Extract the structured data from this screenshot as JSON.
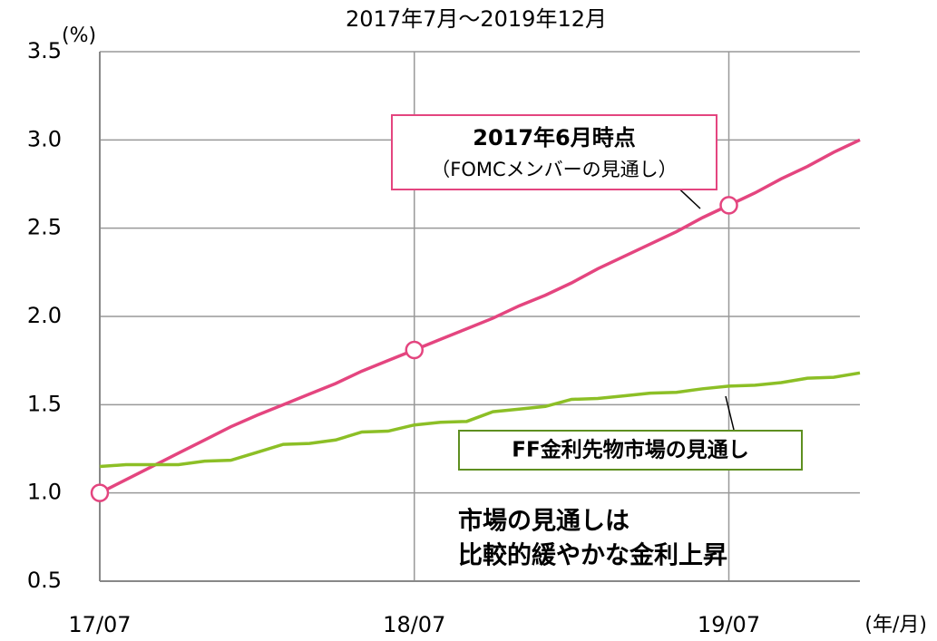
{
  "chart_data": {
    "type": "line",
    "title": "2017年7月～2019年12月",
    "y_label": "(%)",
    "x_label": "(年/月)",
    "categories": [
      "17/07",
      null,
      null,
      null,
      null,
      null,
      null,
      null,
      null,
      null,
      null,
      null,
      "18/07",
      null,
      null,
      null,
      null,
      null,
      null,
      null,
      null,
      null,
      null,
      null,
      "19/07",
      null,
      null,
      null,
      null,
      null
    ],
    "series": [
      {
        "name": "2017年6月時点",
        "subtitle": "（FOMCメンバーの見通し）",
        "color": "#e4457f",
        "markers": [
          0,
          12,
          24
        ],
        "values": [
          1.0,
          1.075,
          1.15,
          1.225,
          1.3,
          1.375,
          1.44,
          1.5,
          1.56,
          1.62,
          1.69,
          1.75,
          1.81,
          1.87,
          1.93,
          1.99,
          2.06,
          2.12,
          2.19,
          2.27,
          2.34,
          2.41,
          2.48,
          2.56,
          2.63,
          2.7,
          2.78,
          2.85,
          2.93,
          3.0
        ]
      },
      {
        "name": "FF金利先物市場の見通し",
        "color": "#8cbf26",
        "values": [
          1.15,
          1.16,
          1.16,
          1.16,
          1.18,
          1.185,
          1.23,
          1.275,
          1.28,
          1.3,
          1.345,
          1.35,
          1.385,
          1.4,
          1.405,
          1.46,
          1.475,
          1.49,
          1.53,
          1.535,
          1.55,
          1.565,
          1.57,
          1.59,
          1.605,
          1.61,
          1.625,
          1.65,
          1.655,
          1.68
        ]
      }
    ],
    "annotations": [
      "市場の見通しは",
      "比較的緩やかな金利上昇"
    ],
    "ylim": [
      0.5,
      3.5
    ],
    "yticks": [
      {
        "value": 0.5,
        "label": "0.5"
      },
      {
        "value": 1,
        "label": "1.0"
      },
      {
        "value": 1.5,
        "label": "1.5"
      },
      {
        "value": 2,
        "label": "2.0"
      },
      {
        "value": 2.5,
        "label": "2.5"
      },
      {
        "value": 3,
        "label": "3.0"
      },
      {
        "value": 3.5,
        "label": "3.5"
      }
    ],
    "grid": true
  }
}
